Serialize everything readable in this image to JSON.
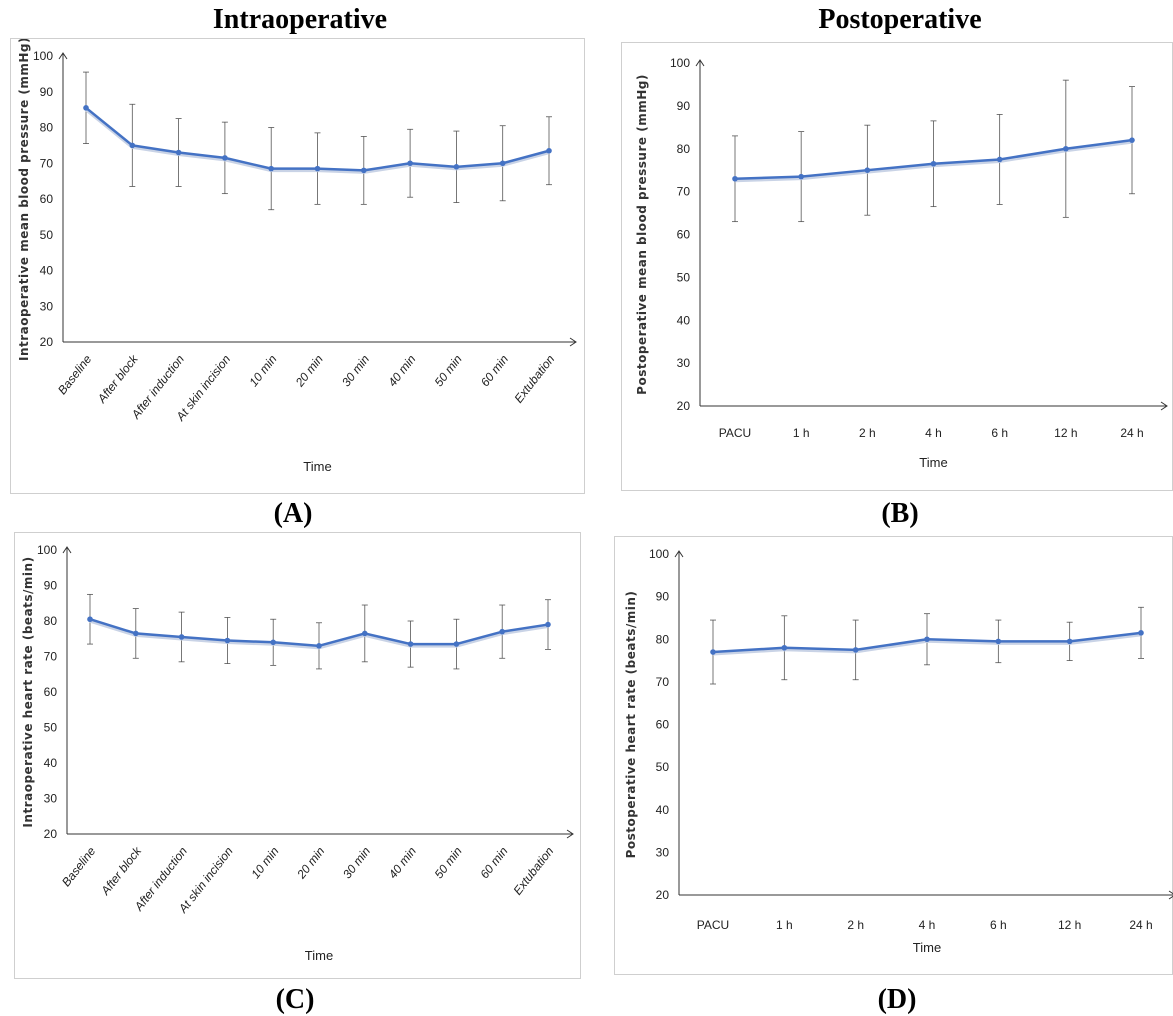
{
  "headings": {
    "left": "Intraoperative",
    "right": "Postoperative"
  },
  "panel_labels": [
    "(A)",
    "(B)",
    "(C)",
    "(D)"
  ],
  "line_color": "#4472C4",
  "chart_data": [
    {
      "id": "A",
      "type": "line",
      "ylabel": "Intraoperative mean blood pressure  (mmHg)",
      "xlabel": "Time",
      "ylim": [
        20,
        100
      ],
      "yticks": [
        20,
        30,
        40,
        50,
        60,
        70,
        80,
        90,
        100
      ],
      "categories": [
        "Baseline",
        "After block",
        "After induction",
        "At skin incision",
        "10 min",
        "20 min",
        "30 min",
        "40 min",
        "50 min",
        "60 min",
        "Extubation"
      ],
      "category_style": "italic-rotated",
      "values": [
        85.5,
        75,
        73,
        71.5,
        68.5,
        68.5,
        68,
        70,
        69,
        70,
        73.5
      ],
      "error_bars": [
        10,
        11.5,
        9.5,
        10,
        11.5,
        10,
        9.5,
        9.5,
        10,
        10.5,
        9.5
      ],
      "grid": false
    },
    {
      "id": "B",
      "type": "line",
      "ylabel": "Postoperative mean blood pressure (mmHg)",
      "xlabel": "Time",
      "ylim": [
        20,
        100
      ],
      "yticks": [
        20,
        30,
        40,
        50,
        60,
        70,
        80,
        90,
        100
      ],
      "categories": [
        "PACU",
        "1 h",
        "2 h",
        "4 h",
        "6 h",
        "12 h",
        "24 h"
      ],
      "category_style": "horizontal",
      "values": [
        73,
        73.5,
        75,
        76.5,
        77.5,
        80,
        82
      ],
      "error_bars": [
        10,
        10.5,
        10.5,
        10,
        10.5,
        16,
        12.5
      ],
      "grid": false
    },
    {
      "id": "C",
      "type": "line",
      "ylabel": "Intraoperative heart rate (beats/min)",
      "xlabel": "Time",
      "ylim": [
        20,
        100
      ],
      "yticks": [
        20,
        30,
        40,
        50,
        60,
        70,
        80,
        90,
        100
      ],
      "categories": [
        "Baseline",
        "After block",
        "After induction",
        "At skin incision",
        "10 min",
        "20 min",
        "30 min",
        "40 min",
        "50 min",
        "60 min",
        "Extubation"
      ],
      "category_style": "italic-rotated",
      "values": [
        80.5,
        76.5,
        75.5,
        74.5,
        74,
        73,
        76.5,
        73.5,
        73.5,
        77,
        79
      ],
      "error_bars": [
        7,
        7,
        7,
        6.5,
        6.5,
        6.5,
        8,
        6.5,
        7,
        7.5,
        7
      ],
      "grid": false
    },
    {
      "id": "D",
      "type": "line",
      "ylabel": "Postoperative heart rate (beats/min)",
      "xlabel": "Time",
      "ylim": [
        20,
        100
      ],
      "yticks": [
        20,
        30,
        40,
        50,
        60,
        70,
        80,
        90,
        100
      ],
      "categories": [
        "PACU",
        "1 h",
        "2 h",
        "4 h",
        "6 h",
        "12 h",
        "24 h"
      ],
      "category_style": "horizontal",
      "values": [
        77,
        78,
        77.5,
        80,
        79.5,
        79.5,
        81.5
      ],
      "error_bars": [
        7.5,
        7.5,
        7,
        6,
        5,
        4.5,
        6
      ],
      "grid": false
    }
  ]
}
